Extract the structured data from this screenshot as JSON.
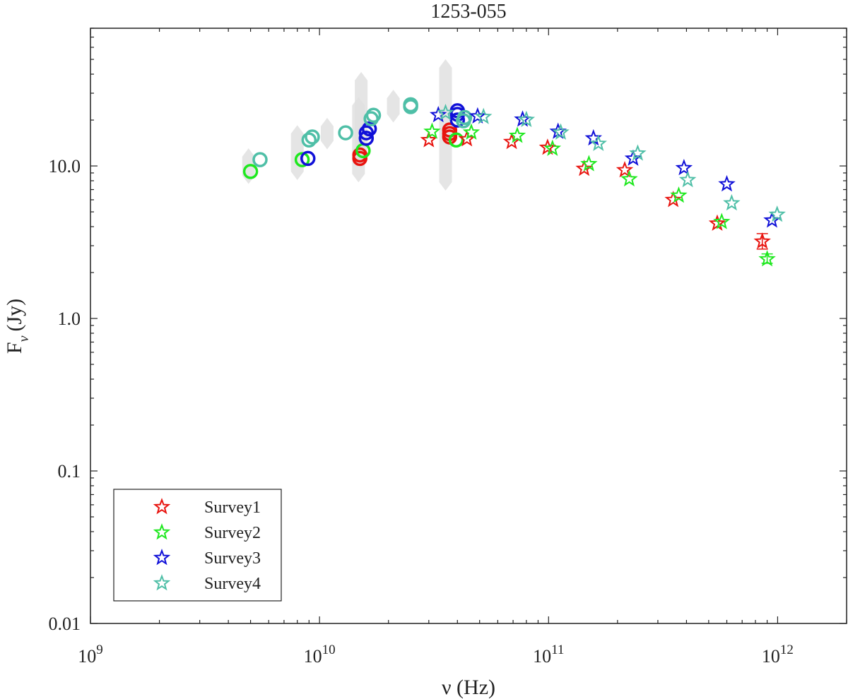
{
  "chart_data": {
    "type": "scatter",
    "title": "1253-055",
    "xlabel": "ν (Hz)",
    "ylabel_main": "F",
    "ylabel_sub": "ν",
    "ylabel_unit": "(Jy)",
    "x_scale": "log",
    "y_scale": "log",
    "xlim": [
      1000000000.0,
      2000000000000.0
    ],
    "ylim": [
      0.01,
      80
    ],
    "x_ticks": [
      {
        "value": 1000000000.0,
        "base": "10",
        "exp": "9"
      },
      {
        "value": 10000000000.0,
        "base": "10",
        "exp": "10"
      },
      {
        "value": 100000000000.0,
        "base": "10",
        "exp": "11"
      },
      {
        "value": 1000000000000.0,
        "base": "10",
        "exp": "12"
      }
    ],
    "y_ticks": [
      {
        "value": 0.01,
        "label": "0.01"
      },
      {
        "value": 0.1,
        "label": "0.1"
      },
      {
        "value": 1,
        "label": "1.0"
      },
      {
        "value": 10,
        "label": "10.0"
      }
    ],
    "grid": false,
    "legend_position": "bottom-left",
    "series": [
      {
        "name": "Survey1",
        "color": "#e8140f",
        "marker": "star",
        "points": [
          {
            "x": 30000000000.0,
            "y": 14.8
          },
          {
            "x": 44000000000.0,
            "y": 15.0
          },
          {
            "x": 69000000000.0,
            "y": 14.4
          },
          {
            "x": 99000000000.0,
            "y": 13.2
          },
          {
            "x": 143000000000.0,
            "y": 9.6
          },
          {
            "x": 215000000000.0,
            "y": 9.4
          },
          {
            "x": 350000000000.0,
            "y": 6.0
          },
          {
            "x": 545000000000.0,
            "y": 4.2
          },
          {
            "x": 857000000000.0,
            "y": 3.2
          }
        ],
        "errors": [
          {
            "x": 857000000000.0,
            "lo": 2.85,
            "hi": 3.6
          }
        ],
        "circles": [
          {
            "x": 15000000000.0,
            "y": 11.2
          },
          {
            "x": 15000000000.0,
            "y": 11.8
          },
          {
            "x": 37000000000.0,
            "y": 15.5
          },
          {
            "x": 37000000000.0,
            "y": 16.3
          },
          {
            "x": 37000000000.0,
            "y": 17.2
          }
        ]
      },
      {
        "name": "Survey2",
        "color": "#1fe81f",
        "marker": "star",
        "points": [
          {
            "x": 31000000000.0,
            "y": 16.8
          },
          {
            "x": 46000000000.0,
            "y": 16.6
          },
          {
            "x": 73000000000.0,
            "y": 15.8
          },
          {
            "x": 104000000000.0,
            "y": 13.0
          },
          {
            "x": 150000000000.0,
            "y": 10.3
          },
          {
            "x": 225000000000.0,
            "y": 8.2
          },
          {
            "x": 370000000000.0,
            "y": 6.4
          },
          {
            "x": 570000000000.0,
            "y": 4.3
          },
          {
            "x": 900000000000.0,
            "y": 2.45
          }
        ],
        "errors": [
          {
            "x": 900000000000.0,
            "lo": 2.3,
            "hi": 2.65
          }
        ],
        "circles": [
          {
            "x": 5000000000.0,
            "y": 9.2
          },
          {
            "x": 8400000000.0,
            "y": 11.0
          },
          {
            "x": 15500000000.0,
            "y": 12.6
          },
          {
            "x": 39500000000.0,
            "y": 14.8
          }
        ]
      },
      {
        "name": "Survey3",
        "color": "#1010d8",
        "marker": "star",
        "points": [
          {
            "x": 33000000000.0,
            "y": 21.6
          },
          {
            "x": 49000000000.0,
            "y": 21.2
          },
          {
            "x": 77000000000.0,
            "y": 20.2
          },
          {
            "x": 110000000000.0,
            "y": 16.8
          },
          {
            "x": 157000000000.0,
            "y": 15.2
          },
          {
            "x": 234000000000.0,
            "y": 11.2
          },
          {
            "x": 390000000000.0,
            "y": 9.7
          },
          {
            "x": 600000000000.0,
            "y": 7.6
          },
          {
            "x": 945000000000.0,
            "y": 4.4
          }
        ],
        "errors": [],
        "circles": [
          {
            "x": 8900000000.0,
            "y": 11.2
          },
          {
            "x": 16000000000.0,
            "y": 15.2
          },
          {
            "x": 16000000000.0,
            "y": 16.5
          },
          {
            "x": 16500000000.0,
            "y": 17.5
          },
          {
            "x": 40000000000.0,
            "y": 20.0
          },
          {
            "x": 40000000000.0,
            "y": 21.8
          },
          {
            "x": 40000000000.0,
            "y": 23.0
          }
        ]
      },
      {
        "name": "Survey4",
        "color": "#4fbfa7",
        "marker": "star",
        "points": [
          {
            "x": 35500000000.0,
            "y": 22.3
          },
          {
            "x": 52000000000.0,
            "y": 21.0
          },
          {
            "x": 80000000000.0,
            "y": 20.1
          },
          {
            "x": 113000000000.0,
            "y": 16.6
          },
          {
            "x": 165000000000.0,
            "y": 14.0
          },
          {
            "x": 245000000000.0,
            "y": 12.1
          },
          {
            "x": 405000000000.0,
            "y": 8.1
          },
          {
            "x": 630000000000.0,
            "y": 5.7
          },
          {
            "x": 995000000000.0,
            "y": 4.8
          }
        ],
        "errors": [],
        "circles": [
          {
            "x": 5500000000.0,
            "y": 11.0
          },
          {
            "x": 9000000000.0,
            "y": 14.8
          },
          {
            "x": 9300000000.0,
            "y": 15.5
          },
          {
            "x": 13000000000.0,
            "y": 16.5
          },
          {
            "x": 16800000000.0,
            "y": 20.4
          },
          {
            "x": 17200000000.0,
            "y": 21.5
          },
          {
            "x": 25000000000.0,
            "y": 24.5
          },
          {
            "x": 25000000000.0,
            "y": 25.2
          },
          {
            "x": 42500000000.0,
            "y": 19.8
          },
          {
            "x": 43000000000.0,
            "y": 20.8
          }
        ]
      }
    ],
    "range_markers": [
      {
        "x": 4900000000.0,
        "lo": 8.3,
        "hi": 12.0
      },
      {
        "x": 8000000000.0,
        "lo": 8.8,
        "hi": 17.0
      },
      {
        "x": 10800000000.0,
        "lo": 14.0,
        "hi": 19.0
      },
      {
        "x": 14800000000.0,
        "lo": 8.5,
        "hi": 26.0
      },
      {
        "x": 15200000000.0,
        "lo": 10.5,
        "hi": 38.0
      },
      {
        "x": 21000000000.0,
        "lo": 21.0,
        "hi": 29.0
      },
      {
        "x": 35500000000.0,
        "lo": 7.5,
        "hi": 46.0
      }
    ]
  }
}
